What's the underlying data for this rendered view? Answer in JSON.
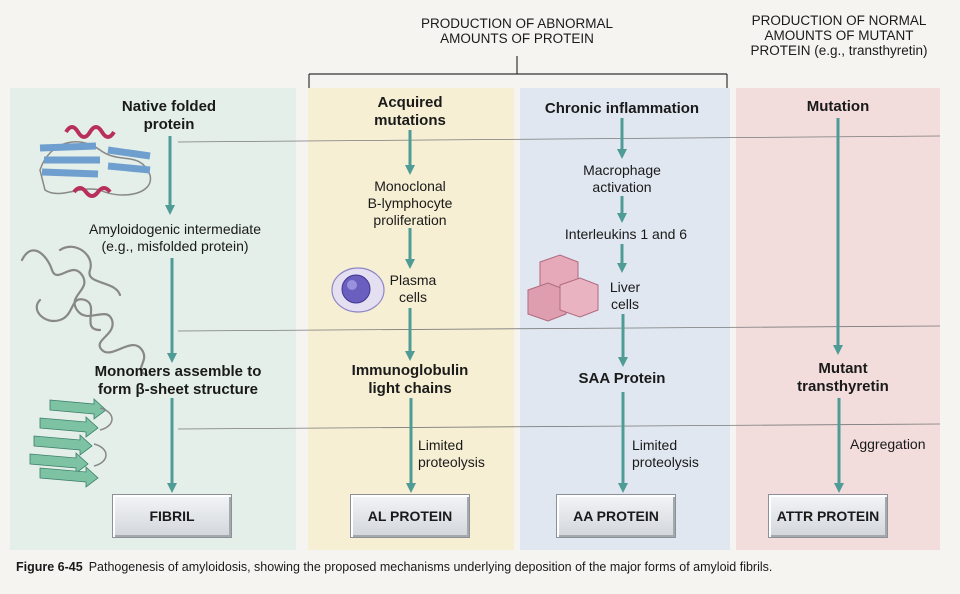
{
  "headers": {
    "abnormal": [
      "PRODUCTION OF ABNORMAL",
      "AMOUNTS OF PROTEIN"
    ],
    "normal": [
      "PRODUCTION OF NORMAL",
      "AMOUNTS OF MUTANT",
      "PROTEIN (e.g., transthyretin)"
    ]
  },
  "col1": {
    "start": [
      "Native folded",
      "protein"
    ],
    "intermediate": [
      "Amyloidogenic intermediate",
      "(e.g., misfolded protein)"
    ],
    "assemble": [
      "Monomers assemble to",
      "form β-sheet structure"
    ],
    "box": "FIBRIL"
  },
  "col2": {
    "start": [
      "Acquired",
      "mutations"
    ],
    "step1": [
      "Monoclonal",
      "B-lymphocyte",
      "proliferation"
    ],
    "step2": [
      "Plasma",
      "cells"
    ],
    "product": [
      "Immunoglobulin",
      "light chains"
    ],
    "process": [
      "Limited",
      "proteolysis"
    ],
    "box": "AL PROTEIN"
  },
  "col3": {
    "start": "Chronic inflammation",
    "step1": [
      "Macrophage",
      "activation"
    ],
    "step2": "Interleukins 1 and 6",
    "step3": [
      "Liver",
      "cells"
    ],
    "product": "SAA Protein",
    "process": [
      "Limited",
      "proteolysis"
    ],
    "box": "AA PROTEIN"
  },
  "col4": {
    "start": "Mutation",
    "product": [
      "Mutant",
      "transthyretin"
    ],
    "process": "Aggregation",
    "box": "ATTR PROTEIN"
  },
  "caption": {
    "label": "Figure 6-45",
    "text": "Pathogenesis of amyloidosis, showing the proposed mechanisms underlying deposition of the major forms of amyloid fibrils."
  },
  "colors": {
    "arrow": "#4f9c97",
    "helix": "#b8305a",
    "sheet": "#6f9fcf",
    "plasma": "#6a5fbf",
    "liver": "#e6a9b9",
    "green_sheet": "#7cc2a3"
  }
}
